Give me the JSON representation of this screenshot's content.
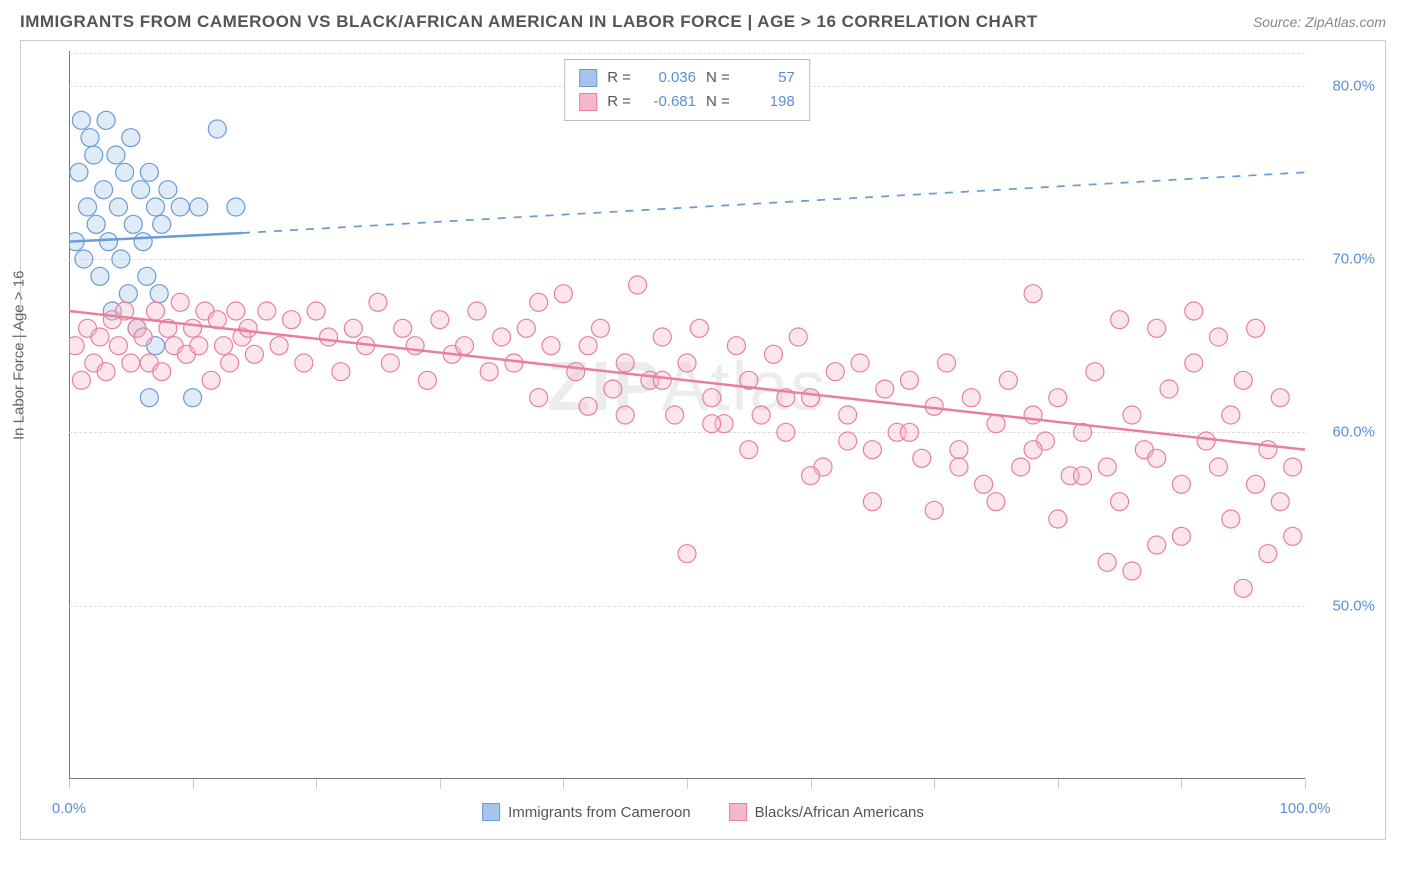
{
  "header": {
    "title": "IMMIGRANTS FROM CAMEROON VS BLACK/AFRICAN AMERICAN IN LABOR FORCE | AGE > 16 CORRELATION CHART",
    "source": "Source: ZipAtlas.com"
  },
  "ylabel": "In Labor Force | Age > 16",
  "watermark": "ZIPAtlas",
  "chart": {
    "type": "scatter",
    "xlim": [
      0,
      100
    ],
    "ylim": [
      40,
      82
    ],
    "x_ticks": [
      0,
      10,
      20,
      30,
      40,
      50,
      60,
      70,
      80,
      90,
      100
    ],
    "x_tick_labels": {
      "0": "0.0%",
      "100": "100.0%"
    },
    "y_ticks": [
      50,
      60,
      70,
      80
    ],
    "y_tick_labels": {
      "50": "50.0%",
      "60": "60.0%",
      "70": "70.0%",
      "80": "80.0%"
    },
    "background_color": "#ffffff",
    "grid_color": "#dddddd",
    "marker_radius": 9,
    "marker_opacity": 0.35,
    "line_width": 2.5
  },
  "series": [
    {
      "name": "Immigrants from Cameroon",
      "color_fill": "#a7c5ea",
      "color_stroke": "#6a9bd8",
      "R": "0.036",
      "N": "57",
      "regression": {
        "x1": 0,
        "y1": 71.0,
        "x2": 14,
        "y2": 71.5,
        "dash_x2": 100,
        "dash_y2": 75.0
      },
      "points": [
        [
          0.5,
          71
        ],
        [
          0.8,
          75
        ],
        [
          1.0,
          78
        ],
        [
          1.2,
          70
        ],
        [
          1.5,
          73
        ],
        [
          1.7,
          77
        ],
        [
          2.0,
          76
        ],
        [
          2.2,
          72
        ],
        [
          2.5,
          69
        ],
        [
          2.8,
          74
        ],
        [
          3.0,
          78
        ],
        [
          3.2,
          71
        ],
        [
          3.5,
          67
        ],
        [
          3.8,
          76
        ],
        [
          4.0,
          73
        ],
        [
          4.2,
          70
        ],
        [
          4.5,
          75
        ],
        [
          4.8,
          68
        ],
        [
          5.0,
          77
        ],
        [
          5.2,
          72
        ],
        [
          5.5,
          66
        ],
        [
          5.8,
          74
        ],
        [
          6.0,
          71
        ],
        [
          6.3,
          69
        ],
        [
          6.5,
          75
        ],
        [
          6.5,
          62
        ],
        [
          7.0,
          73
        ],
        [
          7.0,
          65
        ],
        [
          7.3,
          68
        ],
        [
          7.5,
          72
        ],
        [
          8.0,
          74
        ],
        [
          9.0,
          73
        ],
        [
          10.5,
          73
        ],
        [
          10.0,
          62
        ],
        [
          12.0,
          77.5
        ],
        [
          13.5,
          73
        ]
      ]
    },
    {
      "name": "Blacks/African Americans",
      "color_fill": "#f5b8c8",
      "color_stroke": "#e87fa0",
      "R": "-0.681",
      "N": "198",
      "regression": {
        "x1": 0,
        "y1": 67.0,
        "x2": 100,
        "y2": 59.0
      },
      "points": [
        [
          0.5,
          65
        ],
        [
          1,
          63
        ],
        [
          1.5,
          66
        ],
        [
          2,
          64
        ],
        [
          2.5,
          65.5
        ],
        [
          3,
          63.5
        ],
        [
          3.5,
          66.5
        ],
        [
          4,
          65
        ],
        [
          4.5,
          67
        ],
        [
          5,
          64
        ],
        [
          5.5,
          66
        ],
        [
          6,
          65.5
        ],
        [
          6.5,
          64
        ],
        [
          7,
          67
        ],
        [
          7.5,
          63.5
        ],
        [
          8,
          66
        ],
        [
          8.5,
          65
        ],
        [
          9,
          67.5
        ],
        [
          9.5,
          64.5
        ],
        [
          10,
          66
        ],
        [
          10.5,
          65
        ],
        [
          11,
          67
        ],
        [
          11.5,
          63
        ],
        [
          12,
          66.5
        ],
        [
          12.5,
          65
        ],
        [
          13,
          64
        ],
        [
          13.5,
          67
        ],
        [
          14,
          65.5
        ],
        [
          14.5,
          66
        ],
        [
          15,
          64.5
        ],
        [
          16,
          67
        ],
        [
          17,
          65
        ],
        [
          18,
          66.5
        ],
        [
          19,
          64
        ],
        [
          20,
          67
        ],
        [
          21,
          65.5
        ],
        [
          22,
          63.5
        ],
        [
          23,
          66
        ],
        [
          24,
          65
        ],
        [
          25,
          67.5
        ],
        [
          26,
          64
        ],
        [
          27,
          66
        ],
        [
          28,
          65
        ],
        [
          29,
          63
        ],
        [
          30,
          66.5
        ],
        [
          31,
          64.5
        ],
        [
          32,
          65
        ],
        [
          33,
          67
        ],
        [
          34,
          63.5
        ],
        [
          35,
          65.5
        ],
        [
          36,
          64
        ],
        [
          37,
          66
        ],
        [
          38,
          62
        ],
        [
          39,
          65
        ],
        [
          40,
          68
        ],
        [
          41,
          63.5
        ],
        [
          42,
          65
        ],
        [
          43,
          66
        ],
        [
          44,
          62.5
        ],
        [
          45,
          64
        ],
        [
          46,
          68.5
        ],
        [
          47,
          63
        ],
        [
          48,
          65.5
        ],
        [
          49,
          61
        ],
        [
          50,
          64
        ],
        [
          51,
          66
        ],
        [
          52,
          62
        ],
        [
          53,
          60.5
        ],
        [
          54,
          65
        ],
        [
          55,
          63
        ],
        [
          56,
          61
        ],
        [
          57,
          64.5
        ],
        [
          58,
          60
        ],
        [
          59,
          65.5
        ],
        [
          60,
          62
        ],
        [
          61,
          58
        ],
        [
          62,
          63.5
        ],
        [
          63,
          61
        ],
        [
          64,
          64
        ],
        [
          65,
          59
        ],
        [
          66,
          62.5
        ],
        [
          67,
          60
        ],
        [
          68,
          63
        ],
        [
          69,
          58.5
        ],
        [
          70,
          61.5
        ],
        [
          71,
          64
        ],
        [
          72,
          59
        ],
        [
          73,
          62
        ],
        [
          74,
          57
        ],
        [
          75,
          60.5
        ],
        [
          76,
          63
        ],
        [
          77,
          58
        ],
        [
          78,
          61
        ],
        [
          78,
          68
        ],
        [
          79,
          59.5
        ],
        [
          80,
          62
        ],
        [
          81,
          57.5
        ],
        [
          82,
          60
        ],
        [
          83,
          63.5
        ],
        [
          84,
          58
        ],
        [
          85,
          66.5
        ],
        [
          86,
          61
        ],
        [
          87,
          59
        ],
        [
          88,
          66
        ],
        [
          89,
          62.5
        ],
        [
          90,
          57
        ],
        [
          91,
          64
        ],
        [
          91,
          67
        ],
        [
          92,
          59.5
        ],
        [
          93,
          65.5
        ],
        [
          93,
          58
        ],
        [
          94,
          61
        ],
        [
          94,
          55
        ],
        [
          95,
          63
        ],
        [
          95,
          51
        ],
        [
          96,
          57
        ],
        [
          96,
          66
        ],
        [
          97,
          59
        ],
        [
          97,
          53
        ],
        [
          98,
          62
        ],
        [
          98,
          56
        ],
        [
          99,
          58
        ],
        [
          99,
          54
        ],
        [
          50,
          53
        ],
        [
          45,
          61
        ],
        [
          48,
          63
        ],
        [
          52,
          60.5
        ],
        [
          55,
          59
        ],
        [
          58,
          62
        ],
        [
          60,
          57.5
        ],
        [
          63,
          59.5
        ],
        [
          65,
          56
        ],
        [
          68,
          60
        ],
        [
          70,
          55.5
        ],
        [
          72,
          58
        ],
        [
          75,
          56
        ],
        [
          78,
          59
        ],
        [
          80,
          55
        ],
        [
          82,
          57.5
        ],
        [
          85,
          56
        ],
        [
          88,
          58.5
        ],
        [
          90,
          54
        ],
        [
          86,
          52
        ],
        [
          88,
          53.5
        ],
        [
          84,
          52.5
        ],
        [
          38,
          67.5
        ],
        [
          42,
          61.5
        ]
      ]
    }
  ],
  "legend_top": {
    "R_label": "R =",
    "N_label": "N ="
  }
}
